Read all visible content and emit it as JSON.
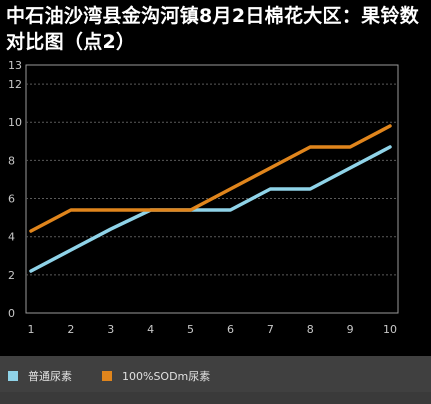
{
  "title": "中石油沙湾县金沟河镇8月2日棉花大区：果铃数对比图（点2）",
  "chart_data": {
    "type": "line",
    "x": [
      1,
      2,
      3,
      4,
      5,
      6,
      7,
      8,
      9,
      10
    ],
    "xticks": [
      "1",
      "2",
      "3",
      "4",
      "5",
      "6",
      "7",
      "8",
      "9",
      "10"
    ],
    "yticks": [
      "0",
      "2",
      "4",
      "6",
      "8",
      "10",
      "12",
      "13"
    ],
    "ylim": [
      0,
      13
    ],
    "grid": true,
    "series": [
      {
        "name": "普通尿素",
        "color": "#8fd3e8",
        "values": [
          2.2,
          3.3,
          4.4,
          5.4,
          5.4,
          5.4,
          6.5,
          6.5,
          7.6,
          8.7
        ]
      },
      {
        "name": "100%SODm尿素",
        "color": "#e0851c",
        "values": [
          4.3,
          5.4,
          5.4,
          5.4,
          5.4,
          6.5,
          7.6,
          8.7,
          8.7,
          9.8
        ]
      }
    ],
    "legend": "bottom"
  }
}
